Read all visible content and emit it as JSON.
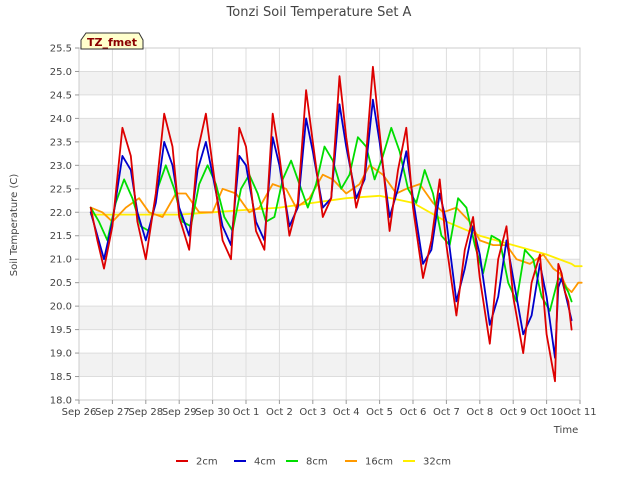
{
  "chart_data": {
    "type": "line",
    "title": "Tonzi Soil Temperature Set A",
    "xlabel": "Time",
    "ylabel": "Soil Temperature (C)",
    "site_label": "TZ_fmet",
    "xlim": [
      0,
      15
    ],
    "ylim": [
      18.0,
      25.5
    ],
    "x_ticks": [
      {
        "x": 0,
        "label": "Sep 26"
      },
      {
        "x": 1,
        "label": "Sep 27"
      },
      {
        "x": 2,
        "label": "Sep 28"
      },
      {
        "x": 3,
        "label": "Sep 29"
      },
      {
        "x": 4,
        "label": "Sep 30"
      },
      {
        "x": 5,
        "label": "Oct 1"
      },
      {
        "x": 6,
        "label": "Oct 2"
      },
      {
        "x": 7,
        "label": "Oct 3"
      },
      {
        "x": 8,
        "label": "Oct 4"
      },
      {
        "x": 9,
        "label": "Oct 5"
      },
      {
        "x": 10,
        "label": "Oct 6"
      },
      {
        "x": 11,
        "label": "Oct 7"
      },
      {
        "x": 12,
        "label": "Oct 8"
      },
      {
        "x": 13,
        "label": "Oct 9"
      },
      {
        "x": 14,
        "label": "Oct 10"
      },
      {
        "x": 15,
        "label": "Oct 11"
      }
    ],
    "y_ticks": [
      "18.0",
      "18.5",
      "19.0",
      "19.5",
      "20.0",
      "20.5",
      "21.0",
      "21.5",
      "22.0",
      "22.5",
      "23.0",
      "23.5",
      "24.0",
      "24.5",
      "25.0",
      "25.5"
    ],
    "grid": true,
    "legend_position": "bottom-center",
    "series": [
      {
        "name": "2cm",
        "color": "#dd0000",
        "x": [
          0.35,
          0.55,
          0.75,
          1.0,
          1.3,
          1.55,
          1.75,
          2.0,
          2.3,
          2.55,
          2.8,
          3.0,
          3.3,
          3.55,
          3.8,
          4.0,
          4.3,
          4.55,
          4.8,
          5.0,
          5.3,
          5.55,
          5.8,
          6.0,
          6.3,
          6.55,
          6.8,
          7.0,
          7.3,
          7.55,
          7.8,
          8.0,
          8.3,
          8.55,
          8.8,
          9.0,
          9.3,
          9.55,
          9.8,
          10.0,
          10.3,
          10.55,
          10.8,
          11.0,
          11.3,
          11.55,
          11.8,
          12.0,
          12.3,
          12.55,
          12.8,
          13.0,
          13.3,
          13.55,
          13.8,
          14.0,
          14.25,
          14.35
        ],
        "y": [
          22.1,
          21.4,
          20.8,
          21.7,
          23.8,
          23.2,
          21.8,
          21.0,
          22.4,
          24.1,
          23.4,
          21.9,
          21.2,
          23.3,
          24.1,
          23.0,
          21.4,
          21.0,
          23.8,
          23.4,
          21.6,
          21.2,
          24.1,
          23.2,
          21.5,
          22.2,
          24.6,
          23.5,
          21.9,
          22.3,
          24.9,
          23.6,
          22.1,
          22.8,
          25.1,
          23.7,
          21.6,
          22.9,
          23.8,
          22.1,
          20.6,
          21.4,
          22.7,
          21.3,
          19.8,
          21.2,
          21.9,
          20.6,
          19.2,
          21.0,
          21.7,
          20.2,
          19.0,
          20.5,
          21.1,
          19.4,
          18.4,
          20.9
        ],
        "tail": [
          [
            14.45,
            20.7
          ],
          [
            14.55,
            20.3
          ],
          [
            14.65,
            20.1
          ],
          [
            14.75,
            19.5
          ]
        ]
      },
      {
        "name": "4cm",
        "color": "#0000cc",
        "x": [
          0.35,
          0.55,
          0.75,
          1.0,
          1.3,
          1.55,
          1.75,
          2.0,
          2.3,
          2.55,
          2.8,
          3.0,
          3.3,
          3.55,
          3.8,
          4.0,
          4.3,
          4.55,
          4.8,
          5.0,
          5.3,
          5.55,
          5.8,
          6.0,
          6.3,
          6.55,
          6.8,
          7.0,
          7.3,
          7.55,
          7.8,
          8.0,
          8.3,
          8.55,
          8.8,
          9.0,
          9.3,
          9.55,
          9.8,
          10.0,
          10.3,
          10.55,
          10.8,
          11.0,
          11.3,
          11.55,
          11.8,
          12.0,
          12.3,
          12.55,
          12.8,
          13.0,
          13.3,
          13.55,
          13.8,
          14.0,
          14.25,
          14.35
        ],
        "y": [
          22.0,
          21.5,
          21.0,
          21.8,
          23.2,
          22.9,
          22.0,
          21.4,
          22.2,
          23.5,
          23.0,
          22.1,
          21.5,
          22.9,
          23.5,
          22.8,
          21.7,
          21.3,
          23.2,
          23.0,
          21.8,
          21.4,
          23.6,
          23.0,
          21.7,
          22.1,
          24.0,
          23.3,
          22.1,
          22.3,
          24.3,
          23.4,
          22.3,
          22.7,
          24.4,
          23.5,
          21.9,
          22.5,
          23.3,
          22.3,
          20.9,
          21.2,
          22.4,
          21.8,
          20.1,
          20.8,
          21.7,
          21.1,
          19.6,
          20.2,
          21.4,
          20.6,
          19.4,
          19.8,
          20.9,
          20.2,
          18.9,
          20.4
        ],
        "tail": [
          [
            14.45,
            20.6
          ],
          [
            14.55,
            20.3
          ],
          [
            14.65,
            20.0
          ],
          [
            14.75,
            19.7
          ]
        ]
      },
      {
        "name": "8cm",
        "color": "#00dd00",
        "x": [
          0.35,
          0.6,
          0.85,
          1.1,
          1.35,
          1.6,
          1.85,
          2.1,
          2.35,
          2.6,
          2.85,
          3.1,
          3.35,
          3.6,
          3.85,
          4.1,
          4.35,
          4.6,
          4.85,
          5.1,
          5.35,
          5.6,
          5.85,
          6.1,
          6.35,
          6.6,
          6.85,
          7.1,
          7.35,
          7.6,
          7.85,
          8.1,
          8.35,
          8.6,
          8.85,
          9.1,
          9.35,
          9.6,
          9.85,
          10.1,
          10.35,
          10.6,
          10.85,
          11.1,
          11.35,
          11.6,
          11.85,
          12.1,
          12.35,
          12.6,
          12.85,
          13.1,
          13.35,
          13.6,
          13.85,
          14.1,
          14.35
        ],
        "y": [
          22.1,
          21.8,
          21.4,
          22.2,
          22.7,
          22.3,
          21.7,
          21.6,
          22.5,
          23.0,
          22.5,
          21.8,
          21.7,
          22.6,
          23.0,
          22.6,
          21.9,
          21.6,
          22.5,
          22.8,
          22.4,
          21.8,
          21.9,
          22.7,
          23.1,
          22.6,
          22.1,
          22.6,
          23.4,
          23.1,
          22.5,
          22.8,
          23.6,
          23.4,
          22.7,
          23.2,
          23.8,
          23.3,
          22.5,
          22.2,
          22.9,
          22.4,
          21.5,
          21.3,
          22.3,
          22.1,
          21.3,
          20.7,
          21.5,
          21.4,
          20.5,
          20.1,
          21.2,
          21.0,
          20.2,
          19.9,
          20.6
        ],
        "tail": [
          [
            14.5,
            20.5
          ],
          [
            14.65,
            20.3
          ],
          [
            14.75,
            20.1
          ]
        ]
      },
      {
        "name": "16cm",
        "color": "#ff9900",
        "x": [
          0.35,
          0.7,
          1.0,
          1.4,
          1.8,
          2.1,
          2.5,
          2.9,
          3.2,
          3.6,
          4.0,
          4.3,
          4.7,
          5.1,
          5.4,
          5.8,
          6.2,
          6.5,
          6.9,
          7.3,
          7.6,
          8.0,
          8.4,
          8.7,
          9.1,
          9.5,
          9.8,
          10.2,
          10.6,
          10.9,
          11.3,
          11.7,
          12.0,
          12.4,
          12.8,
          13.1,
          13.5,
          13.9,
          14.2,
          14.4,
          14.6,
          14.75
        ],
        "y": [
          22.1,
          22.0,
          21.8,
          22.1,
          22.3,
          22.0,
          21.9,
          22.4,
          22.4,
          22.0,
          22.0,
          22.5,
          22.4,
          22.0,
          22.1,
          22.6,
          22.5,
          22.1,
          22.3,
          22.8,
          22.7,
          22.4,
          22.6,
          23.0,
          22.8,
          22.4,
          22.5,
          22.6,
          22.2,
          22.0,
          22.1,
          21.8,
          21.4,
          21.3,
          21.3,
          21.0,
          20.9,
          21.1,
          20.8,
          20.7,
          20.4,
          20.3
        ],
        "tail": [
          [
            14.85,
            20.4
          ],
          [
            14.95,
            20.5
          ],
          [
            15.05,
            20.5
          ]
        ]
      },
      {
        "name": "32cm",
        "color": "#ffee00",
        "x": [
          0.35,
          1.0,
          2.0,
          3.0,
          4.0,
          5.0,
          6.0,
          7.0,
          8.0,
          9.0,
          10.0,
          11.0,
          12.0,
          13.0,
          14.0,
          14.75
        ],
        "y": [
          21.95,
          21.95,
          21.95,
          21.95,
          22.0,
          22.05,
          22.1,
          22.2,
          22.3,
          22.35,
          22.2,
          21.8,
          21.5,
          21.3,
          21.1,
          20.9
        ],
        "tail": [
          [
            14.85,
            20.85
          ],
          [
            15.05,
            20.85
          ]
        ]
      }
    ]
  }
}
